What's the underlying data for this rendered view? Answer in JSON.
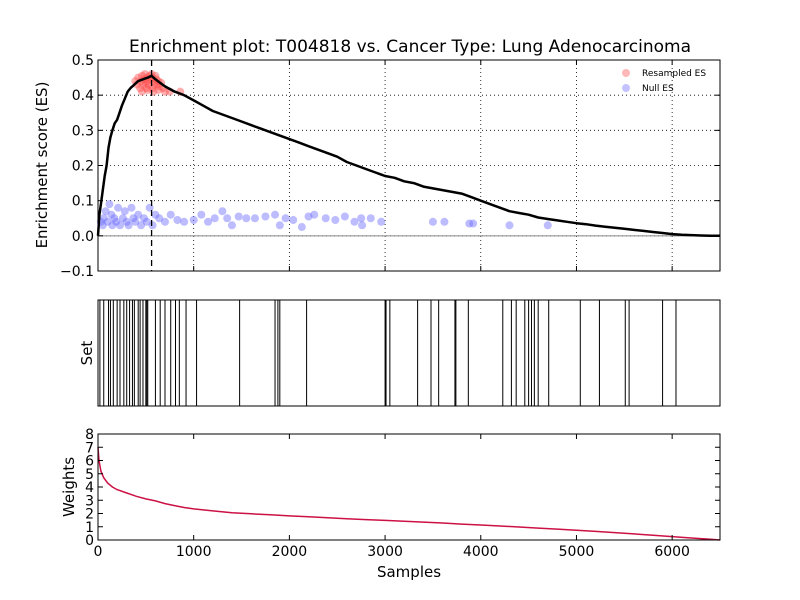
{
  "chart_data": [
    {
      "type": "line",
      "panel": "enrichment",
      "title": "Enrichment plot: T004818 vs. Cancer Type: Lung Adenocarcinoma",
      "xlabel": "",
      "ylabel": "Enrichment score (ES)",
      "xlim": [
        0,
        6500
      ],
      "ylim": [
        -0.1,
        0.5
      ],
      "yticks": [
        -0.1,
        0.0,
        0.1,
        0.2,
        0.3,
        0.4,
        0.5
      ],
      "ytick_labels": [
        "−0.1",
        "0.0",
        "0.1",
        "0.2",
        "0.3",
        "0.4",
        "0.5"
      ],
      "xticks": [
        0,
        1000,
        2000,
        3000,
        4000,
        5000,
        6000
      ],
      "grid": true,
      "grid_style": "dotted",
      "legend_position": "top-right",
      "peak_x": 560,
      "peak_marker": "dashed vertical line",
      "series": [
        {
          "kind": "running-es",
          "color": "#000000",
          "points": [
            [
              0,
              0
            ],
            [
              15,
              0.06
            ],
            [
              30,
              0.09
            ],
            [
              50,
              0.13
            ],
            [
              70,
              0.17
            ],
            [
              90,
              0.2
            ],
            [
              110,
              0.25
            ],
            [
              130,
              0.28
            ],
            [
              150,
              0.3
            ],
            [
              175,
              0.32
            ],
            [
              200,
              0.33
            ],
            [
              225,
              0.35
            ],
            [
              250,
              0.37
            ],
            [
              280,
              0.39
            ],
            [
              310,
              0.41
            ],
            [
              340,
              0.42
            ],
            [
              380,
              0.43
            ],
            [
              420,
              0.44
            ],
            [
              470,
              0.445
            ],
            [
              520,
              0.45
            ],
            [
              560,
              0.455
            ],
            [
              600,
              0.445
            ],
            [
              650,
              0.435
            ],
            [
              700,
              0.425
            ],
            [
              800,
              0.41
            ],
            [
              900,
              0.4
            ],
            [
              1000,
              0.385
            ],
            [
              1100,
              0.37
            ],
            [
              1200,
              0.355
            ],
            [
              1300,
              0.345
            ],
            [
              1400,
              0.335
            ],
            [
              1500,
              0.325
            ],
            [
              1600,
              0.315
            ],
            [
              1700,
              0.305
            ],
            [
              1800,
              0.295
            ],
            [
              1900,
              0.285
            ],
            [
              2000,
              0.275
            ],
            [
              2100,
              0.265
            ],
            [
              2200,
              0.255
            ],
            [
              2300,
              0.245
            ],
            [
              2400,
              0.235
            ],
            [
              2500,
              0.225
            ],
            [
              2600,
              0.21
            ],
            [
              2700,
              0.2
            ],
            [
              2800,
              0.19
            ],
            [
              2900,
              0.18
            ],
            [
              3000,
              0.17
            ],
            [
              3100,
              0.165
            ],
            [
              3200,
              0.155
            ],
            [
              3300,
              0.15
            ],
            [
              3400,
              0.14
            ],
            [
              3500,
              0.135
            ],
            [
              3600,
              0.13
            ],
            [
              3700,
              0.125
            ],
            [
              3800,
              0.12
            ],
            [
              3900,
              0.11
            ],
            [
              4000,
              0.1
            ],
            [
              4100,
              0.09
            ],
            [
              4200,
              0.08
            ],
            [
              4300,
              0.07
            ],
            [
              4400,
              0.065
            ],
            [
              4500,
              0.06
            ],
            [
              4600,
              0.052
            ],
            [
              4700,
              0.048
            ],
            [
              4800,
              0.044
            ],
            [
              4900,
              0.04
            ],
            [
              5000,
              0.036
            ],
            [
              5100,
              0.033
            ],
            [
              5200,
              0.029
            ],
            [
              5300,
              0.026
            ],
            [
              5400,
              0.023
            ],
            [
              5500,
              0.02
            ],
            [
              5600,
              0.017
            ],
            [
              5700,
              0.014
            ],
            [
              5800,
              0.011
            ],
            [
              5900,
              0.008
            ],
            [
              6000,
              0.005
            ],
            [
              6100,
              0.003
            ],
            [
              6200,
              0.002
            ],
            [
              6300,
              0.001
            ],
            [
              6400,
              0.0
            ],
            [
              6500,
              0.0
            ]
          ]
        },
        {
          "name": "Resampled ES",
          "kind": "scatter",
          "color": "#ff4d4d",
          "points": [
            [
              390,
              0.44
            ],
            [
              410,
              0.43
            ],
            [
              420,
              0.45
            ],
            [
              440,
              0.42
            ],
            [
              450,
              0.44
            ],
            [
              460,
              0.455
            ],
            [
              470,
              0.43
            ],
            [
              480,
              0.445
            ],
            [
              490,
              0.46
            ],
            [
              500,
              0.435
            ],
            [
              505,
              0.42
            ],
            [
              510,
              0.45
            ],
            [
              520,
              0.44
            ],
            [
              530,
              0.43
            ],
            [
              540,
              0.455
            ],
            [
              550,
              0.445
            ],
            [
              560,
              0.46
            ],
            [
              565,
              0.42
            ],
            [
              570,
              0.45
            ],
            [
              580,
              0.44
            ],
            [
              590,
              0.43
            ],
            [
              600,
              0.455
            ],
            [
              610,
              0.445
            ],
            [
              620,
              0.43
            ],
            [
              630,
              0.44
            ],
            [
              640,
              0.425
            ],
            [
              660,
              0.435
            ],
            [
              680,
              0.42
            ],
            [
              700,
              0.41
            ],
            [
              750,
              0.41
            ],
            [
              860,
              0.41
            ],
            [
              460,
              0.41
            ],
            [
              520,
              0.415
            ],
            [
              580,
              0.41
            ],
            [
              630,
              0.415
            ]
          ]
        },
        {
          "name": "Null ES",
          "kind": "scatter",
          "color": "#6a6aff",
          "points": [
            [
              30,
              0.04
            ],
            [
              50,
              0.03
            ],
            [
              60,
              0.05
            ],
            [
              80,
              0.07
            ],
            [
              100,
              0.04
            ],
            [
              120,
              0.09
            ],
            [
              140,
              0.06
            ],
            [
              150,
              0.03
            ],
            [
              170,
              0.05
            ],
            [
              190,
              0.04
            ],
            [
              210,
              0.08
            ],
            [
              230,
              0.03
            ],
            [
              260,
              0.05
            ],
            [
              280,
              0.07
            ],
            [
              300,
              0.04
            ],
            [
              320,
              0.03
            ],
            [
              350,
              0.08
            ],
            [
              370,
              0.05
            ],
            [
              390,
              0.04
            ],
            [
              420,
              0.06
            ],
            [
              450,
              0.03
            ],
            [
              480,
              0.05
            ],
            [
              510,
              0.04
            ],
            [
              540,
              0.08
            ],
            [
              570,
              0.03
            ],
            [
              600,
              0.06
            ],
            [
              640,
              0.05
            ],
            [
              700,
              0.04
            ],
            [
              760,
              0.06
            ],
            [
              830,
              0.045
            ],
            [
              900,
              0.04
            ],
            [
              1000,
              0.045
            ],
            [
              1080,
              0.06
            ],
            [
              1150,
              0.04
            ],
            [
              1220,
              0.05
            ],
            [
              1300,
              0.07
            ],
            [
              1350,
              0.05
            ],
            [
              1400,
              0.03
            ],
            [
              1470,
              0.055
            ],
            [
              1550,
              0.05
            ],
            [
              1640,
              0.05
            ],
            [
              1750,
              0.055
            ],
            [
              1850,
              0.06
            ],
            [
              1900,
              0.03
            ],
            [
              1960,
              0.05
            ],
            [
              2040,
              0.045
            ],
            [
              2130,
              0.025
            ],
            [
              2200,
              0.055
            ],
            [
              2260,
              0.06
            ],
            [
              2380,
              0.05
            ],
            [
              2480,
              0.045
            ],
            [
              2580,
              0.055
            ],
            [
              2680,
              0.04
            ],
            [
              2750,
              0.05
            ],
            [
              2760,
              0.03
            ],
            [
              2850,
              0.05
            ],
            [
              2960,
              0.04
            ],
            [
              3500,
              0.04
            ],
            [
              3620,
              0.04
            ],
            [
              3880,
              0.035
            ],
            [
              3920,
              0.035
            ],
            [
              4300,
              0.03
            ],
            [
              4700,
              0.03
            ]
          ]
        }
      ]
    },
    {
      "type": "barcode",
      "panel": "set",
      "ylabel": "Set",
      "xlim": [
        0,
        6500
      ],
      "hit_positions": [
        20,
        60,
        110,
        130,
        160,
        200,
        230,
        270,
        300,
        330,
        360,
        380,
        420,
        440,
        470,
        500,
        510,
        520,
        600,
        650,
        700,
        760,
        810,
        850,
        920,
        1030,
        1480,
        1850,
        1880,
        1900,
        2180,
        3000,
        3010,
        3050,
        3340,
        3480,
        3560,
        3730,
        3740,
        3870,
        4230,
        4320,
        4370,
        4460,
        4500,
        4530,
        4560,
        4600,
        4710,
        5040,
        5240,
        5510,
        5550,
        5900,
        6040
      ]
    },
    {
      "type": "line",
      "panel": "weights",
      "xlabel": "Samples",
      "ylabel": "Weights",
      "xlim": [
        0,
        6500
      ],
      "ylim": [
        0,
        8
      ],
      "yticks": [
        0,
        1,
        2,
        3,
        4,
        5,
        6,
        7,
        8
      ],
      "xticks": [
        0,
        1000,
        2000,
        3000,
        4000,
        5000,
        6000
      ],
      "color": "#cc1144",
      "points": [
        [
          0,
          7.0
        ],
        [
          10,
          6.0
        ],
        [
          30,
          5.2
        ],
        [
          60,
          4.7
        ],
        [
          100,
          4.3
        ],
        [
          150,
          4.0
        ],
        [
          200,
          3.8
        ],
        [
          300,
          3.55
        ],
        [
          400,
          3.3
        ],
        [
          500,
          3.1
        ],
        [
          600,
          2.95
        ],
        [
          700,
          2.75
        ],
        [
          800,
          2.6
        ],
        [
          900,
          2.45
        ],
        [
          1000,
          2.35
        ],
        [
          1200,
          2.2
        ],
        [
          1400,
          2.05
        ],
        [
          1600,
          1.98
        ],
        [
          1800,
          1.9
        ],
        [
          2000,
          1.82
        ],
        [
          2200,
          1.75
        ],
        [
          2400,
          1.68
        ],
        [
          2600,
          1.61
        ],
        [
          2800,
          1.54
        ],
        [
          3000,
          1.48
        ],
        [
          3200,
          1.42
        ],
        [
          3400,
          1.35
        ],
        [
          3600,
          1.28
        ],
        [
          3800,
          1.2
        ],
        [
          4000,
          1.13
        ],
        [
          4200,
          1.06
        ],
        [
          4400,
          0.98
        ],
        [
          4600,
          0.9
        ],
        [
          4800,
          0.82
        ],
        [
          5000,
          0.73
        ],
        [
          5200,
          0.65
        ],
        [
          5400,
          0.56
        ],
        [
          5600,
          0.46
        ],
        [
          5800,
          0.36
        ],
        [
          6000,
          0.26
        ],
        [
          6200,
          0.15
        ],
        [
          6400,
          0.06
        ],
        [
          6500,
          0.0
        ]
      ]
    }
  ]
}
